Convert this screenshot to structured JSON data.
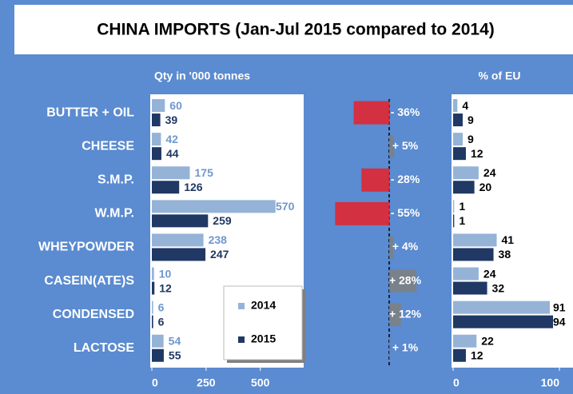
{
  "title": "CHINA IMPORTS (Jan-Jul 2015 compared to 2014)",
  "chart_data": [
    {
      "type": "bar",
      "orientation": "horizontal",
      "title": "Qty in '000 tonnes",
      "categories": [
        "BUTTER + OIL",
        "CHEESE",
        "S.M.P.",
        "W.M.P.",
        "WHEYPOWDER",
        "CASEIN(ATE)S",
        "CONDENSED",
        "LACTOSE"
      ],
      "series": [
        {
          "name": "2014",
          "color": "#95b3d7",
          "values": [
            60,
            42,
            175,
            570,
            238,
            10,
            6,
            54
          ]
        },
        {
          "name": "2015",
          "color": "#1f3864",
          "values": [
            39,
            44,
            126,
            259,
            247,
            12,
            6,
            55
          ]
        }
      ],
      "xlim": [
        0,
        700
      ],
      "xticks": [
        0,
        250,
        500
      ],
      "legend": "bottom-right"
    },
    {
      "type": "bar",
      "orientation": "horizontal",
      "values": [
        -36,
        5,
        -28,
        -55,
        4,
        28,
        12,
        1
      ],
      "value_labels": [
        "- 36%",
        "+ 5%",
        "- 28%",
        "- 55%",
        "+ 4%",
        "+ 28%",
        "+ 12%",
        "+ 1%"
      ],
      "negative_color": "#e8212a",
      "positive_color": "#7f7f7f"
    },
    {
      "type": "bar",
      "orientation": "horizontal",
      "title": "% of EU",
      "series": [
        {
          "name": "2014",
          "color": "#95b3d7",
          "values": [
            4,
            9,
            24,
            1,
            41,
            24,
            91,
            22
          ]
        },
        {
          "name": "2015",
          "color": "#1f3864",
          "values": [
            9,
            12,
            20,
            1,
            38,
            32,
            94,
            12
          ]
        }
      ],
      "xlim": [
        0,
        100
      ],
      "xticks": [
        0,
        100
      ]
    }
  ]
}
